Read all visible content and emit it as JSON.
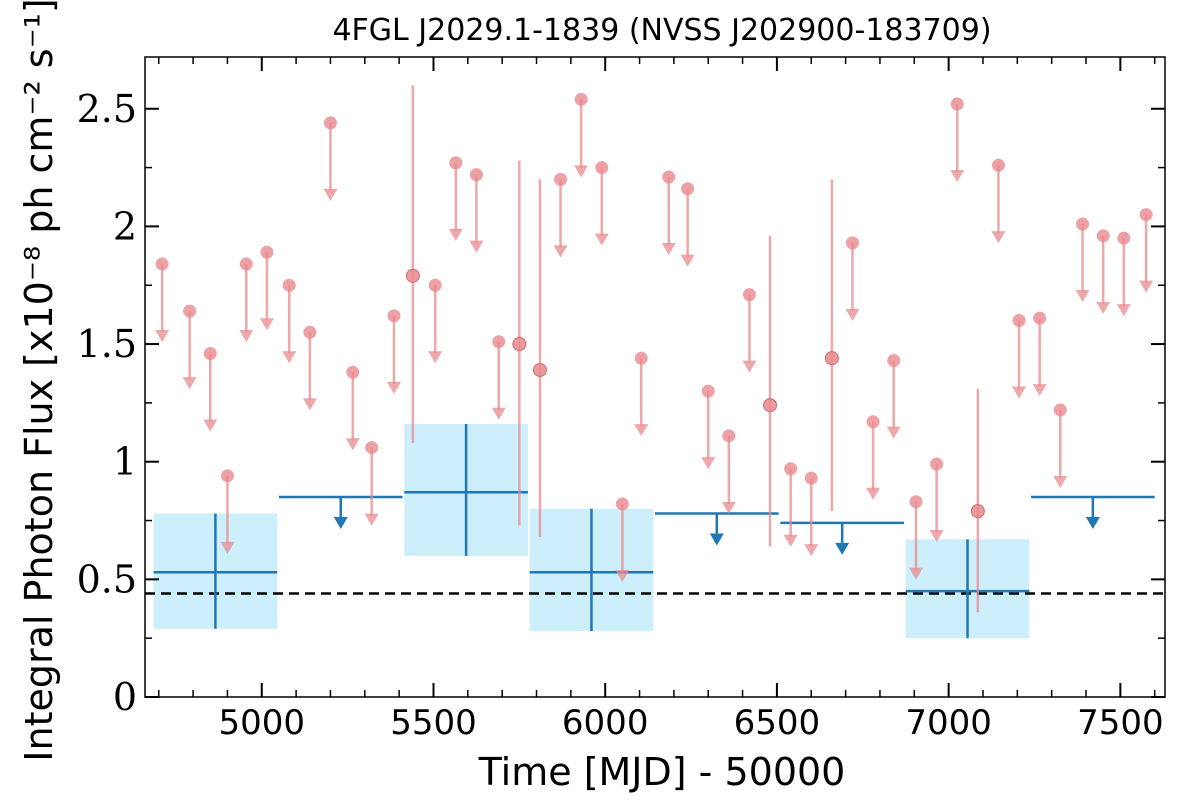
{
  "chart_data": {
    "type": "scatter",
    "title": "4FGL J2029.1-1839 (NVSS J202900-183709)",
    "xlabel": "Time [MJD] - 50000",
    "ylabel": "Integral Photon Flux [x10⁻⁸ ph cm⁻² s⁻¹]",
    "xlim": [
      4660,
      7630
    ],
    "ylim": [
      0,
      2.72
    ],
    "x_ticks": [
      5000,
      5500,
      6000,
      6500,
      7000,
      7500
    ],
    "x_tick_labels": [
      "5000",
      "5500",
      "6000",
      "6500",
      "7000",
      "7500"
    ],
    "y_ticks": [
      0,
      0.5,
      1,
      1.5,
      2,
      2.5
    ],
    "y_tick_labels": [
      "0",
      "0.5",
      "1",
      "1.5",
      "2",
      "2.5"
    ],
    "grid": false,
    "average_flux": 0.44,
    "colors": {
      "short_bin": "#e8898d",
      "long_bin": "#1f77b4",
      "long_bin_band": "#cdeefb",
      "average_line": "#000000"
    },
    "series": [
      {
        "bin": "short",
        "upper_limits": [
          {
            "x": 4710,
            "y": 1.84
          },
          {
            "x": 4790,
            "y": 1.64
          },
          {
            "x": 4850,
            "y": 1.46
          },
          {
            "x": 4900,
            "y": 0.94
          },
          {
            "x": 4955,
            "y": 1.84
          },
          {
            "x": 5015,
            "y": 1.89
          },
          {
            "x": 5080,
            "y": 1.75
          },
          {
            "x": 5140,
            "y": 1.55
          },
          {
            "x": 5200,
            "y": 2.44
          },
          {
            "x": 5265,
            "y": 1.38
          },
          {
            "x": 5320,
            "y": 1.06
          },
          {
            "x": 5385,
            "y": 1.62
          },
          {
            "x": 5505,
            "y": 1.75
          },
          {
            "x": 5565,
            "y": 2.27
          },
          {
            "x": 5625,
            "y": 2.22
          },
          {
            "x": 5690,
            "y": 1.51
          },
          {
            "x": 5870,
            "y": 2.2
          },
          {
            "x": 5930,
            "y": 2.54
          },
          {
            "x": 5990,
            "y": 2.25
          },
          {
            "x": 6050,
            "y": 0.82
          },
          {
            "x": 6105,
            "y": 1.44
          },
          {
            "x": 6185,
            "y": 2.21
          },
          {
            "x": 6240,
            "y": 2.16
          },
          {
            "x": 6300,
            "y": 1.3
          },
          {
            "x": 6360,
            "y": 1.11
          },
          {
            "x": 6420,
            "y": 1.71
          },
          {
            "x": 6540,
            "y": 0.97
          },
          {
            "x": 6600,
            "y": 0.93
          },
          {
            "x": 6720,
            "y": 1.93
          },
          {
            "x": 6780,
            "y": 1.17
          },
          {
            "x": 6840,
            "y": 1.43
          },
          {
            "x": 6905,
            "y": 0.83
          },
          {
            "x": 6965,
            "y": 0.99
          },
          {
            "x": 7025,
            "y": 2.52
          },
          {
            "x": 7145,
            "y": 2.26
          },
          {
            "x": 7205,
            "y": 1.6
          },
          {
            "x": 7265,
            "y": 1.61
          },
          {
            "x": 7325,
            "y": 1.22
          },
          {
            "x": 7390,
            "y": 2.01
          },
          {
            "x": 7450,
            "y": 1.96
          },
          {
            "x": 7510,
            "y": 1.95
          },
          {
            "x": 7575,
            "y": 2.05
          }
        ],
        "detections": [
          {
            "x": 5440,
            "y": 1.79,
            "ylow": 1.08,
            "yhigh": 2.6
          },
          {
            "x": 5750,
            "y": 1.5,
            "ylow": 0.73,
            "yhigh": 2.28
          },
          {
            "x": 5810,
            "y": 1.39,
            "ylow": 0.68,
            "yhigh": 2.2
          },
          {
            "x": 6480,
            "y": 1.24,
            "ylow": 0.64,
            "yhigh": 1.96
          },
          {
            "x": 6660,
            "y": 1.44,
            "ylow": 0.79,
            "yhigh": 2.2
          },
          {
            "x": 7085,
            "y": 0.79,
            "ylow": 0.36,
            "yhigh": 1.31
          }
        ]
      },
      {
        "bin": "long",
        "detections": [
          {
            "x": 4865,
            "xlow": 4685,
            "xhigh": 5045,
            "y": 0.53,
            "ylow": 0.29,
            "yhigh": 0.78
          },
          {
            "x": 5595,
            "xlow": 5415,
            "xhigh": 5775,
            "y": 0.87,
            "ylow": 0.6,
            "yhigh": 1.16
          },
          {
            "x": 5960,
            "xlow": 5780,
            "xhigh": 6140,
            "y": 0.53,
            "ylow": 0.28,
            "yhigh": 0.8
          },
          {
            "x": 7055,
            "xlow": 6875,
            "xhigh": 7235,
            "y": 0.45,
            "ylow": 0.25,
            "yhigh": 0.67
          }
        ],
        "upper_limits": [
          {
            "x": 5230,
            "xlow": 5050,
            "xhigh": 5410,
            "y": 0.85
          },
          {
            "x": 6325,
            "xlow": 6145,
            "xhigh": 6505,
            "y": 0.78
          },
          {
            "x": 6690,
            "xlow": 6510,
            "xhigh": 6870,
            "y": 0.74
          },
          {
            "x": 7420,
            "xlow": 7240,
            "xhigh": 7600,
            "y": 0.85
          }
        ]
      }
    ]
  }
}
